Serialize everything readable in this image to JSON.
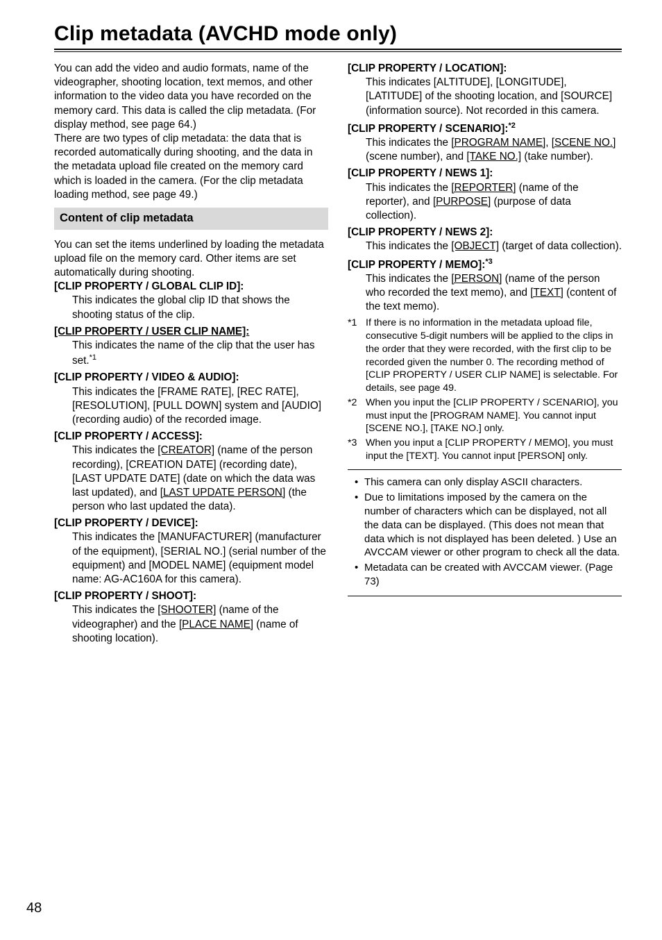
{
  "title": "Clip metadata (AVCHD mode only)",
  "intro1": "You can add the video and audio formats, name of the videographer, shooting location, text memos, and other information to the video data you have recorded on the memory card. This data is called the clip metadata. (For display method, see page 64.)",
  "intro2": "There are two types of clip metadata: the data that is recorded automatically during shooting, and the data in the metadata upload file created on the memory card which is loaded in the camera. (For the clip metadata loading method, see page 49.)",
  "sectionBar": "Content of clip metadata",
  "sectionIntro": "You can set the items underlined by loading the metadata upload file on the memory card. Other items are set automatically during shooting.",
  "left": {
    "globalClipId": {
      "term": "[CLIP PROPERTY / GLOBAL CLIP ID]:",
      "body": "This indicates the global clip ID that shows the shooting status of the clip."
    },
    "userClipName": {
      "term": "[CLIP PROPERTY / USER CLIP NAME]:",
      "body_a": "This indicates the name of the clip that the user has set.",
      "sup": "*1"
    },
    "videoAudio": {
      "term": "[CLIP PROPERTY / VIDEO & AUDIO]:",
      "body": "This indicates the [FRAME RATE], [REC RATE], [RESOLUTION], [PULL DOWN] system and [AUDIO] (recording audio) of the recorded image."
    },
    "access": {
      "term": "[CLIP PROPERTY / ACCESS]:",
      "body_a": "This indicates the ",
      "creator": "[CREATOR]",
      "body_b": " (name of the person recording), [CREATION DATE] (recording date), [LAST UPDATE DATE] (date on which the data was last updated), and ",
      "lastUpdatePerson": "[LAST UPDATE PERSON]",
      "body_c": " (the person who last updated the data)."
    },
    "device": {
      "term": "[CLIP PROPERTY / DEVICE]:",
      "body": "This indicates the [MANUFACTURER] (manufacturer of the equipment), [SERIAL NO.] (serial number of the equipment) and [MODEL NAME] (equipment model name: AG-AC160A for this camera)."
    },
    "shoot": {
      "term": "[CLIP PROPERTY / SHOOT]:",
      "body_a": "This indicates the ",
      "shooter": "[SHOOTER]",
      "body_b": " (name of the videographer) and the ",
      "placeName": "[PLACE NAME]",
      "body_c": " (name of shooting location)."
    }
  },
  "right": {
    "location": {
      "term": "[CLIP PROPERTY / LOCATION]:",
      "body": "This indicates [ALTITUDE], [LONGITUDE], [LATITUDE] of the shooting location, and [SOURCE] (information source). Not recorded in this camera."
    },
    "scenario": {
      "term": "[CLIP PROPERTY / SCENARIO]:",
      "sup": "*2",
      "body_a": "This indicates the ",
      "programName": "[PROGRAM NAME]",
      "body_b": ", ",
      "sceneNo": "[SCENE NO.]",
      "body_c": " (scene number), and ",
      "takeNo": "[TAKE NO.]",
      "body_d": " (take number)."
    },
    "news1": {
      "term": "[CLIP PROPERTY / NEWS 1]:",
      "body_a": "This indicates the ",
      "reporter": "[REPORTER]",
      "body_b": " (name of the reporter), and ",
      "purpose": "[PURPOSE]",
      "body_c": " (purpose of data collection)."
    },
    "news2": {
      "term": "[CLIP PROPERTY / NEWS 2]:",
      "body_a": "This indicates the ",
      "object": "[OBJECT]",
      "body_b": " (target of data collection)."
    },
    "memo": {
      "term": "[CLIP PROPERTY / MEMO]:",
      "sup": "*3",
      "body_a": "This indicates the ",
      "person": "[PERSON]",
      "body_b": " (name of the person who recorded the text memo), and ",
      "text": "[TEXT]",
      "body_c": " (content of the text memo)."
    }
  },
  "footnotes": {
    "f1": {
      "marker": "*1",
      "text": "If there is no information in the metadata upload file, consecutive 5-digit numbers will be applied to the clips in the order that they were recorded, with the first clip to be recorded given the number 0. The recording method of [CLIP PROPERTY / USER CLIP NAME] is selectable. For details, see page 49."
    },
    "f2": {
      "marker": "*2",
      "text": "When you input the [CLIP PROPERTY / SCENARIO], you must input the [PROGRAM NAME]. You cannot input [SCENE NO.], [TAKE NO.] only."
    },
    "f3": {
      "marker": "*3",
      "text": "When you input a [CLIP PROPERTY / MEMO], you must input the [TEXT]. You cannot input [PERSON] only."
    }
  },
  "notes": {
    "n1": "This camera can only display ASCII characters.",
    "n2": "Due to limitations imposed by the camera on the number of characters which can be displayed, not all the data can be displayed. (This does not mean that data which is not displayed has been deleted. ) Use an AVCCAM viewer or other program to check all the data.",
    "n3": "Metadata can be created with AVCCAM viewer. (Page 73)"
  },
  "pageNumber": "48"
}
